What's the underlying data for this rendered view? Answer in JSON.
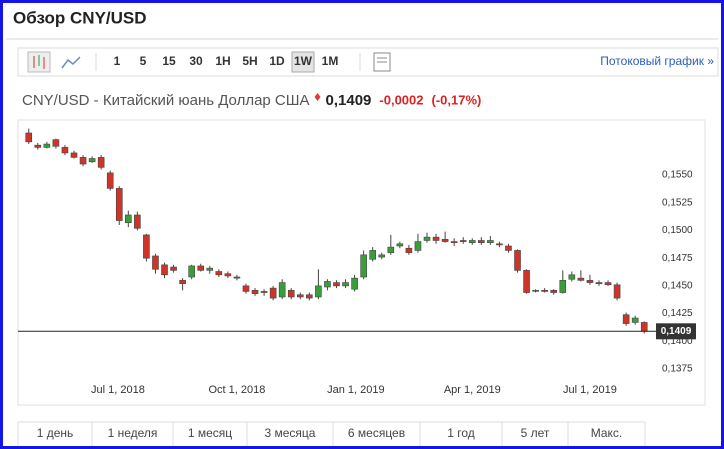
{
  "header": {
    "title": "Обзор CNY/USD"
  },
  "toolbar": {
    "intervals": [
      {
        "label": "1"
      },
      {
        "label": "5"
      },
      {
        "label": "15"
      },
      {
        "label": "30"
      },
      {
        "label": "1H"
      },
      {
        "label": "5H"
      },
      {
        "label": "1D"
      },
      {
        "label": "1W",
        "selected": true
      },
      {
        "label": "1M"
      }
    ],
    "streaming_link": "Потоковый график »"
  },
  "instrument": {
    "name": "CNY/USD - Китайский юань Доллар США",
    "price": "0,1409",
    "change": "-0,0002",
    "change_percent": "(-0,17%)"
  },
  "chart_data": {
    "type": "candlestick",
    "up_color": "#3a9d3a",
    "down_color": "#cf3429",
    "x": [
      "2018-04-23",
      "2018-04-30",
      "2018-05-07",
      "2018-05-14",
      "2018-05-21",
      "2018-05-28",
      "2018-06-04",
      "2018-06-11",
      "2018-06-18",
      "2018-06-25",
      "2018-07-02",
      "2018-07-09",
      "2018-07-16",
      "2018-07-23",
      "2018-07-30",
      "2018-08-06",
      "2018-08-13",
      "2018-08-20",
      "2018-08-27",
      "2018-09-03",
      "2018-09-10",
      "2018-09-17",
      "2018-09-24",
      "2018-10-01",
      "2018-10-08",
      "2018-10-15",
      "2018-10-22",
      "2018-10-29",
      "2018-11-05",
      "2018-11-12",
      "2018-11-19",
      "2018-11-26",
      "2018-12-03",
      "2018-12-10",
      "2018-12-17",
      "2018-12-24",
      "2018-12-31",
      "2019-01-07",
      "2019-01-14",
      "2019-01-21",
      "2019-01-28",
      "2019-02-04",
      "2019-02-11",
      "2019-02-18",
      "2019-02-25",
      "2019-03-04",
      "2019-03-11",
      "2019-03-18",
      "2019-03-25",
      "2019-04-01",
      "2019-04-08",
      "2019-04-15",
      "2019-04-22",
      "2019-04-29",
      "2019-05-06",
      "2019-05-13",
      "2019-05-20",
      "2019-05-27",
      "2019-06-03",
      "2019-06-10",
      "2019-06-17",
      "2019-06-24",
      "2019-07-01",
      "2019-07-08",
      "2019-07-15",
      "2019-07-22",
      "2019-07-29",
      "2019-08-05",
      "2019-08-12"
    ],
    "open": [
      0.1588,
      0.1577,
      0.1575,
      0.1582,
      0.1575,
      0.157,
      0.1566,
      0.1562,
      0.1566,
      0.1552,
      0.1538,
      0.1507,
      0.1514,
      0.1496,
      0.1477,
      0.1469,
      0.1467,
      0.1455,
      0.1458,
      0.1468,
      0.1464,
      0.1463,
      0.1461,
      0.1458,
      0.145,
      0.1446,
      0.1445,
      0.1448,
      0.144,
      0.1446,
      0.1442,
      0.1442,
      0.144,
      0.1449,
      0.1453,
      0.145,
      0.1447,
      0.1458,
      0.1474,
      0.1476,
      0.148,
      0.1486,
      0.1484,
      0.1482,
      0.1491,
      0.1494,
      0.1492,
      0.149,
      0.1491,
      0.1489,
      0.1491,
      0.1489,
      0.1488,
      0.1486,
      0.1482,
      0.1464,
      0.1446,
      0.1446,
      0.1446,
      0.1444,
      0.1456,
      0.1457,
      0.1455,
      0.1453,
      0.1453,
      0.1451,
      0.1424,
      0.1417,
      0.1417
    ],
    "high": [
      0.1592,
      0.1579,
      0.158,
      0.1583,
      0.1577,
      0.1572,
      0.1568,
      0.1567,
      0.1568,
      0.1554,
      0.154,
      0.1518,
      0.1517,
      0.1497,
      0.1479,
      0.1471,
      0.1469,
      0.1457,
      0.1469,
      0.147,
      0.1468,
      0.1465,
      0.1463,
      0.146,
      0.1452,
      0.1448,
      0.1447,
      0.145,
      0.1456,
      0.1448,
      0.1444,
      0.1444,
      0.1465,
      0.1456,
      0.1455,
      0.1456,
      0.146,
      0.1482,
      0.1485,
      0.148,
      0.1496,
      0.149,
      0.1487,
      0.1497,
      0.1498,
      0.1497,
      0.1499,
      0.1493,
      0.1494,
      0.1493,
      0.1494,
      0.1495,
      0.149,
      0.1488,
      0.1483,
      0.1465,
      0.1447,
      0.1448,
      0.1447,
      0.1464,
      0.1463,
      0.1464,
      0.146,
      0.1455,
      0.1455,
      0.1453,
      0.1426,
      0.1423,
      0.1418
    ],
    "low": [
      0.1578,
      0.1573,
      0.1574,
      0.1574,
      0.1568,
      0.1565,
      0.1558,
      0.1561,
      0.1555,
      0.1536,
      0.1505,
      0.1503,
      0.15,
      0.1472,
      0.1461,
      0.1457,
      0.1462,
      0.1446,
      0.1456,
      0.1463,
      0.1461,
      0.1458,
      0.1457,
      0.1455,
      0.1443,
      0.1441,
      0.1441,
      0.1437,
      0.1438,
      0.1438,
      0.1438,
      0.1437,
      0.1438,
      0.1446,
      0.1448,
      0.1448,
      0.1445,
      0.1456,
      0.1472,
      0.1474,
      0.1478,
      0.1484,
      0.1478,
      0.148,
      0.1489,
      0.1488,
      0.1489,
      0.1486,
      0.1488,
      0.1487,
      0.1487,
      0.1487,
      0.1485,
      0.148,
      0.1462,
      0.1443,
      0.1444,
      0.1444,
      0.1442,
      0.1443,
      0.1454,
      0.1454,
      0.1451,
      0.145,
      0.145,
      0.1437,
      0.1414,
      0.1415,
      0.1407
    ],
    "close": [
      0.158,
      0.1575,
      0.1578,
      0.1576,
      0.157,
      0.1566,
      0.156,
      0.1565,
      0.1557,
      0.1538,
      0.1509,
      0.1514,
      0.1502,
      0.1475,
      0.1465,
      0.146,
      0.1464,
      0.1452,
      0.1468,
      0.1464,
      0.1466,
      0.146,
      0.1459,
      0.1457,
      0.1445,
      0.1443,
      0.1444,
      0.1439,
      0.1453,
      0.144,
      0.144,
      0.1439,
      0.145,
      0.1454,
      0.145,
      0.1453,
      0.1457,
      0.1478,
      0.1482,
      0.1478,
      0.1485,
      0.1488,
      0.148,
      0.149,
      0.1494,
      0.1491,
      0.149,
      0.1489,
      0.149,
      0.1491,
      0.1489,
      0.1491,
      0.1487,
      0.1482,
      0.1464,
      0.1444,
      0.1446,
      0.1445,
      0.1444,
      0.1455,
      0.146,
      0.1455,
      0.1453,
      0.1452,
      0.1451,
      0.1439,
      0.1416,
      0.1421,
      0.1409
    ],
    "xlim": [
      "2018-04-15",
      "2019-08-18"
    ],
    "xticks": [
      {
        "value": "2018-07-01",
        "label": "Jul 1, 2018"
      },
      {
        "value": "2018-10-01",
        "label": "Oct 1, 2018"
      },
      {
        "value": "2019-01-01",
        "label": "Jan 1, 2019"
      },
      {
        "value": "2019-04-01",
        "label": "Apr 1, 2019"
      },
      {
        "value": "2019-07-01",
        "label": "Jul 1, 2019"
      }
    ],
    "ylim": [
      0.136,
      0.16
    ],
    "yticks": [
      {
        "value": 0.1375,
        "label": "0,1375"
      },
      {
        "value": 0.14,
        "label": "0,1400"
      },
      {
        "value": 0.1425,
        "label": "0,1425"
      },
      {
        "value": 0.145,
        "label": "0,1450"
      },
      {
        "value": 0.1475,
        "label": "0,1475"
      },
      {
        "value": 0.15,
        "label": "0,1500"
      },
      {
        "value": 0.1525,
        "label": "0,1525"
      },
      {
        "value": 0.155,
        "label": "0,1550"
      }
    ],
    "last_price": {
      "value": 0.1409,
      "label": "0,1409"
    }
  },
  "ranges": [
    "1 день",
    "1 неделя",
    "1 месяц",
    "3 месяца",
    "6 месяцев",
    "1 год",
    "5 лет",
    "Макс."
  ]
}
